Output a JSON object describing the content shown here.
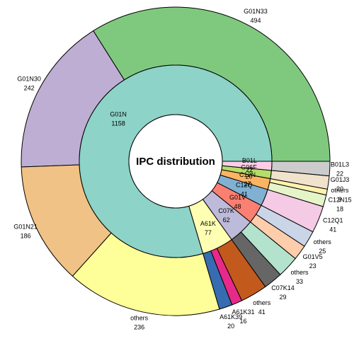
{
  "chart_data": {
    "type": "sunburst",
    "title": "IPC distribution",
    "inner_ring": [
      {
        "label": "G01N",
        "value": 1158,
        "color": "#8dd3c7"
      },
      {
        "label": "A61K",
        "value": 77,
        "color": "#ffffb3"
      },
      {
        "label": "C07K",
        "value": 62,
        "color": "#bebada"
      },
      {
        "label": "G01V",
        "value": 48,
        "color": "#fb8072"
      },
      {
        "label": "C12Q",
        "value": 41,
        "color": "#80b1d3"
      },
      {
        "label": "C12N",
        "value": 27,
        "color": "#fdb462"
      },
      {
        "label": "G06F",
        "value": 20,
        "color": "#b3de69"
      },
      {
        "label": "B01L",
        "value": 22,
        "color": "#fccde5"
      }
    ],
    "outer_ring": [
      {
        "label": "G01N33",
        "value": 494,
        "parent": "G01N",
        "color": "#7fc97f"
      },
      {
        "label": "G01N30",
        "value": 242,
        "parent": "G01N",
        "color": "#beaed4"
      },
      {
        "label": "G01N21",
        "value": 186,
        "parent": "G01N",
        "color": "#f0c285"
      },
      {
        "label": "others",
        "value": 236,
        "parent": "G01N",
        "color": "#ffff99"
      },
      {
        "label": "A61K39",
        "value": 20,
        "parent": "A61K",
        "color": "#386cb0"
      },
      {
        "label": "A61K31",
        "value": 16,
        "parent": "A61K",
        "color": "#e7298a"
      },
      {
        "label": "others",
        "value": 41,
        "parent": "A61K",
        "color": "#c25a1e"
      },
      {
        "label": "C07K14",
        "value": 29,
        "parent": "C07K",
        "color": "#666666"
      },
      {
        "label": "others",
        "value": 33,
        "parent": "C07K",
        "color": "#b3e2cd"
      },
      {
        "label": "G01V5",
        "value": 23,
        "parent": "G01V",
        "color": "#fdcdac"
      },
      {
        "label": "others",
        "value": 25,
        "parent": "G01V",
        "color": "#cbd5e8"
      },
      {
        "label": "C12Q1",
        "value": 41,
        "parent": "C12Q",
        "color": "#f4cae4"
      },
      {
        "label": "C12N15",
        "value": 18,
        "parent": "C12N",
        "color": "#e6f5c9"
      },
      {
        "label": "others",
        "value": 9,
        "parent": "C12N",
        "color": "#fff2ae"
      },
      {
        "label": "G01J3",
        "value": 20,
        "parent": "G06F",
        "color": "#f1e2cc"
      },
      {
        "label": "B01L3",
        "value": 22,
        "parent": "B01L",
        "color": "#cccccc"
      }
    ]
  }
}
